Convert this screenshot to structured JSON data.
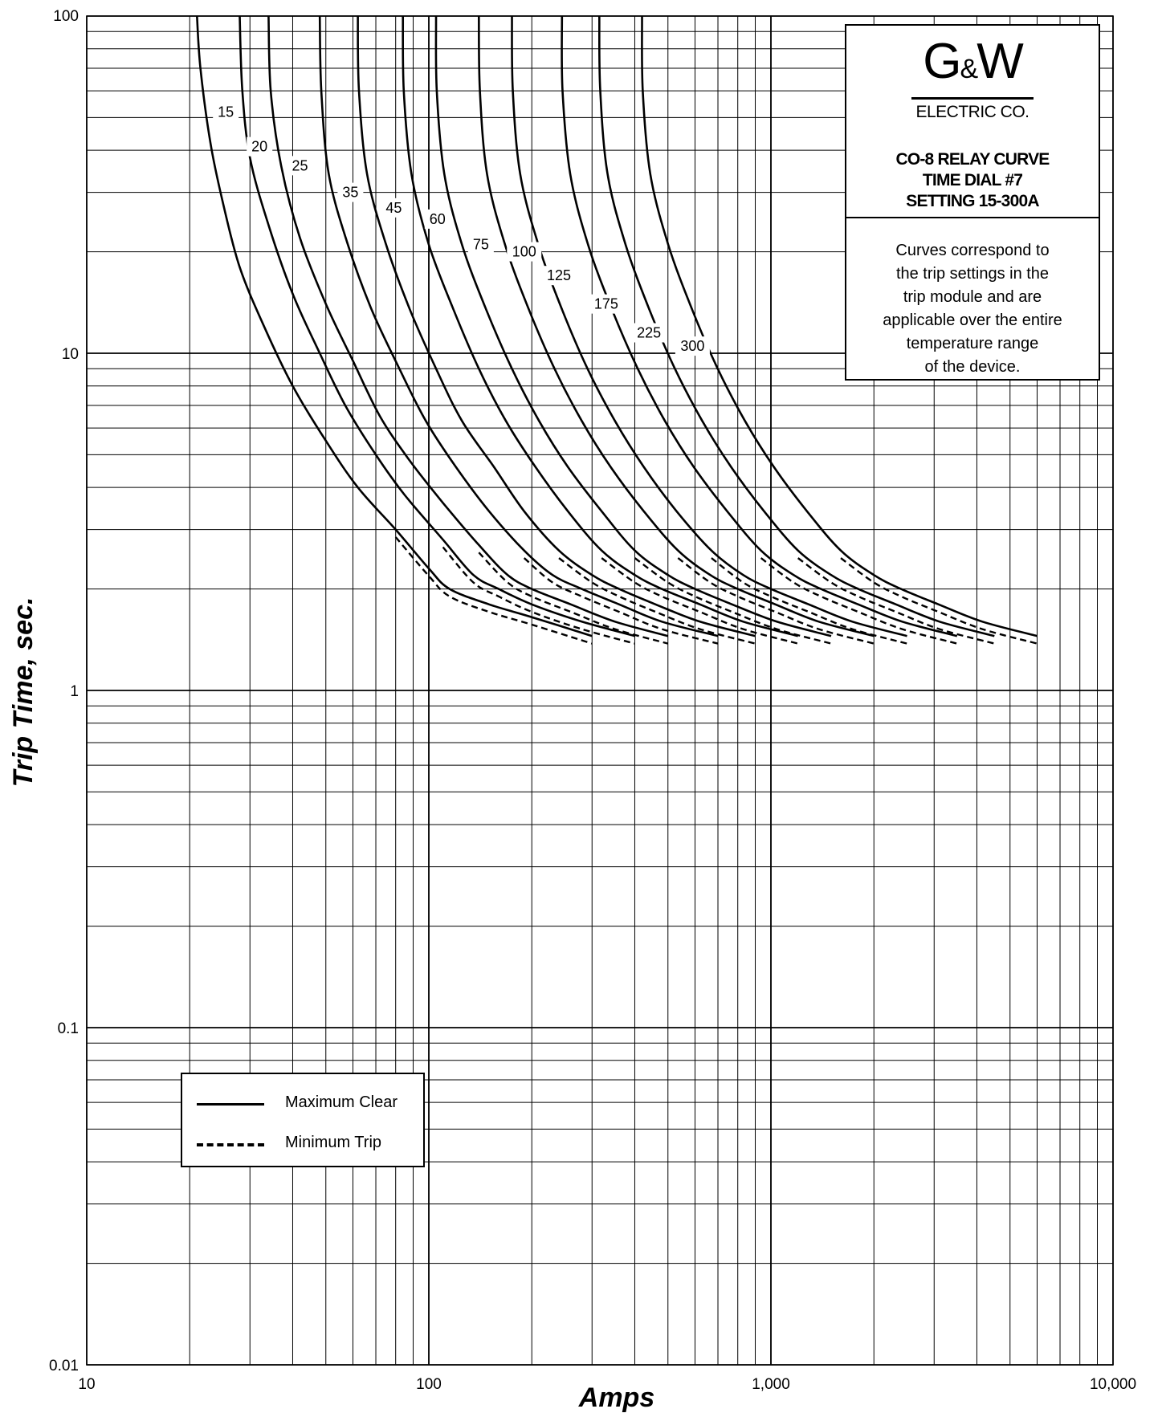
{
  "chart_data": {
    "type": "line",
    "x_scale": "log",
    "y_scale": "log",
    "xlim": [
      10,
      10000
    ],
    "ylim": [
      0.01,
      100
    ],
    "xlabel": "Amps",
    "ylabel": "Trip Time, sec.",
    "x_ticks": [
      "10",
      "100",
      "1,000",
      "10,000"
    ],
    "y_ticks": [
      "100",
      "10",
      "1",
      "0.1",
      "0.01"
    ],
    "grid": true,
    "legend": {
      "placement": "lower-left",
      "entries": [
        {
          "label": "Maximum Clear",
          "style": "solid"
        },
        {
          "label": "Minimum Trip",
          "style": "dashed"
        }
      ]
    },
    "series": [
      {
        "name": "15",
        "x": [
          21,
          21.5,
          23,
          25,
          28,
          33,
          40,
          50,
          62,
          80,
          100,
          115,
          150,
          200,
          300
        ],
        "y": [
          100,
          70,
          42,
          28,
          18,
          12,
          8,
          5.5,
          4,
          3,
          2.3,
          2.0,
          1.8,
          1.65,
          1.45
        ]
      },
      {
        "name": "20",
        "x": [
          28,
          28.5,
          30,
          34,
          40,
          48,
          57,
          70,
          85,
          110,
          135,
          160,
          200,
          280,
          400
        ],
        "y": [
          100,
          60,
          38,
          24,
          15,
          10,
          7,
          5,
          3.8,
          2.8,
          2.2,
          2.0,
          1.8,
          1.6,
          1.45
        ]
      },
      {
        "name": "25",
        "x": [
          34,
          34.5,
          37,
          42,
          50,
          60,
          72,
          88,
          110,
          140,
          170,
          200,
          260,
          350,
          500
        ],
        "y": [
          100,
          60,
          36,
          22,
          14,
          9.5,
          6.5,
          4.8,
          3.6,
          2.7,
          2.2,
          2.0,
          1.8,
          1.6,
          1.45
        ]
      },
      {
        "name": "35",
        "x": [
          48,
          48.5,
          51,
          58,
          68,
          82,
          98,
          120,
          150,
          190,
          230,
          280,
          360,
          480,
          700
        ],
        "y": [
          100,
          60,
          34,
          21,
          13.5,
          9,
          6.3,
          4.6,
          3.4,
          2.6,
          2.2,
          2.0,
          1.8,
          1.6,
          1.45
        ]
      },
      {
        "name": "45",
        "x": [
          62,
          62.5,
          66,
          75,
          88,
          105,
          125,
          155,
          190,
          240,
          300,
          360,
          460,
          620,
          900
        ],
        "y": [
          100,
          60,
          34,
          21,
          13.5,
          9,
          6.3,
          4.6,
          3.4,
          2.6,
          2.2,
          2.0,
          1.8,
          1.6,
          1.45
        ]
      },
      {
        "name": "60",
        "x": [
          84,
          84.5,
          89,
          100,
          118,
          140,
          168,
          205,
          255,
          320,
          400,
          480,
          620,
          830,
          1200
        ],
        "y": [
          100,
          60,
          34,
          21,
          13.5,
          9,
          6.3,
          4.6,
          3.4,
          2.6,
          2.2,
          2.0,
          1.8,
          1.6,
          1.45
        ]
      },
      {
        "name": "75",
        "x": [
          105,
          105.5,
          111,
          125,
          147,
          175,
          210,
          255,
          320,
          400,
          500,
          600,
          770,
          1040,
          1500
        ],
        "y": [
          100,
          60,
          34,
          21,
          13.5,
          9,
          6.3,
          4.6,
          3.4,
          2.6,
          2.2,
          2.0,
          1.8,
          1.6,
          1.45
        ]
      },
      {
        "name": "100",
        "x": [
          140,
          141,
          148,
          167,
          196,
          233,
          280,
          340,
          425,
          535,
          665,
          800,
          1030,
          1380,
          2000
        ],
        "y": [
          100,
          60,
          34,
          21,
          13.5,
          9,
          6.3,
          4.6,
          3.4,
          2.6,
          2.2,
          2.0,
          1.8,
          1.6,
          1.45
        ]
      },
      {
        "name": "125",
        "x": [
          175,
          176,
          185,
          209,
          245,
          291,
          350,
          425,
          530,
          670,
          830,
          1000,
          1290,
          1730,
          2500
        ],
        "y": [
          100,
          60,
          34,
          21,
          13.5,
          9,
          6.3,
          4.6,
          3.4,
          2.6,
          2.2,
          2.0,
          1.8,
          1.6,
          1.45
        ]
      },
      {
        "name": "175",
        "x": [
          245,
          246,
          259,
          292,
          343,
          408,
          490,
          595,
          745,
          935,
          1165,
          1400,
          1800,
          2420,
          3500
        ],
        "y": [
          100,
          60,
          34,
          21,
          13.5,
          9,
          6.3,
          4.6,
          3.4,
          2.6,
          2.2,
          2.0,
          1.8,
          1.6,
          1.45
        ]
      },
      {
        "name": "225",
        "x": [
          315,
          317,
          333,
          376,
          441,
          524,
          630,
          765,
          955,
          1200,
          1500,
          1800,
          2320,
          3110,
          4500
        ],
        "y": [
          100,
          60,
          34,
          21,
          13.5,
          9,
          6.3,
          4.6,
          3.4,
          2.6,
          2.2,
          2.0,
          1.8,
          1.6,
          1.45
        ]
      },
      {
        "name": "300",
        "x": [
          420,
          422,
          444,
          501,
          588,
          699,
          840,
          1020,
          1275,
          1600,
          2000,
          2400,
          3090,
          4150,
          6000
        ],
        "y": [
          100,
          60,
          34,
          21,
          13.5,
          9,
          6.3,
          4.6,
          3.4,
          2.6,
          2.2,
          2.0,
          1.8,
          1.6,
          1.45
        ]
      }
    ],
    "min_trip_factor": 0.95,
    "label_positions": [
      {
        "name": "15",
        "x": 25.5,
        "y": 52
      },
      {
        "name": "20",
        "x": 32,
        "y": 41
      },
      {
        "name": "25",
        "x": 42,
        "y": 36
      },
      {
        "name": "35",
        "x": 59,
        "y": 30
      },
      {
        "name": "45",
        "x": 79,
        "y": 27
      },
      {
        "name": "60",
        "x": 106,
        "y": 25
      },
      {
        "name": "75",
        "x": 142,
        "y": 21
      },
      {
        "name": "100",
        "x": 190,
        "y": 20
      },
      {
        "name": "125",
        "x": 240,
        "y": 17
      },
      {
        "name": "175",
        "x": 330,
        "y": 14
      },
      {
        "name": "225",
        "x": 440,
        "y": 11.5
      },
      {
        "name": "300",
        "x": 590,
        "y": 10.5
      }
    ]
  },
  "infobox": {
    "logo_g": "G",
    "logo_amp": "&",
    "logo_w": "W",
    "company": "ELECTRIC CO.",
    "title_lines": [
      "CO-8 RELAY CURVE",
      "TIME DIAL #7",
      "SETTING 15-300A"
    ],
    "note_lines": [
      "Curves correspond to",
      "the trip settings in the",
      "trip module and are",
      "applicable over the entire",
      "temperature range",
      "of the device."
    ]
  },
  "legend": {
    "solid_label": "Maximum Clear",
    "dashed_label": "Minimum Trip"
  },
  "axis": {
    "x_title": "Amps",
    "y_title": "Trip Time, sec."
  }
}
